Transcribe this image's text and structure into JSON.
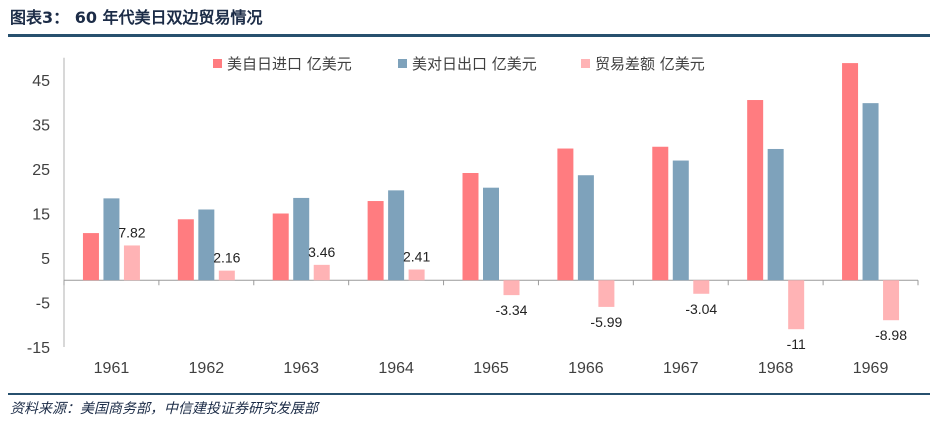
{
  "figure": {
    "title": "图表3： 60 年代美日双边贸易情况",
    "source": "资料来源：美国商务部，中信建投证券研究发展部"
  },
  "chart_data": {
    "type": "bar",
    "categories": [
      "1961",
      "1962",
      "1963",
      "1964",
      "1965",
      "1966",
      "1967",
      "1968",
      "1969"
    ],
    "series": [
      {
        "name": "美自日进口 亿美元",
        "color": "#ff7c80",
        "values": [
          10.6,
          13.7,
          15.0,
          17.8,
          24.1,
          29.6,
          30.0,
          40.5,
          48.8
        ],
        "labels": [
          null,
          null,
          null,
          null,
          null,
          null,
          null,
          null,
          null
        ]
      },
      {
        "name": "美对日出口 亿美元",
        "color": "#7ea2bb",
        "values": [
          18.4,
          15.9,
          18.5,
          20.2,
          20.8,
          23.6,
          26.9,
          29.5,
          39.8
        ],
        "labels": [
          null,
          null,
          null,
          null,
          null,
          null,
          null,
          null,
          null
        ]
      },
      {
        "name": "贸易差额 亿美元",
        "color": "#ffb3b5",
        "values": [
          7.82,
          2.16,
          3.46,
          2.41,
          -3.34,
          -5.99,
          -3.04,
          -11,
          -8.98
        ],
        "labels": [
          "7.82",
          "2.16",
          "3.46",
          "2.41",
          "-3.34",
          "-5.99",
          "-3.04",
          "-11",
          "-8.98"
        ]
      }
    ],
    "yticks": [
      "45",
      "35",
      "25",
      "15",
      "5",
      "-5",
      "-15"
    ],
    "ylim": [
      -15,
      50
    ],
    "grid": false,
    "legend": "top"
  }
}
